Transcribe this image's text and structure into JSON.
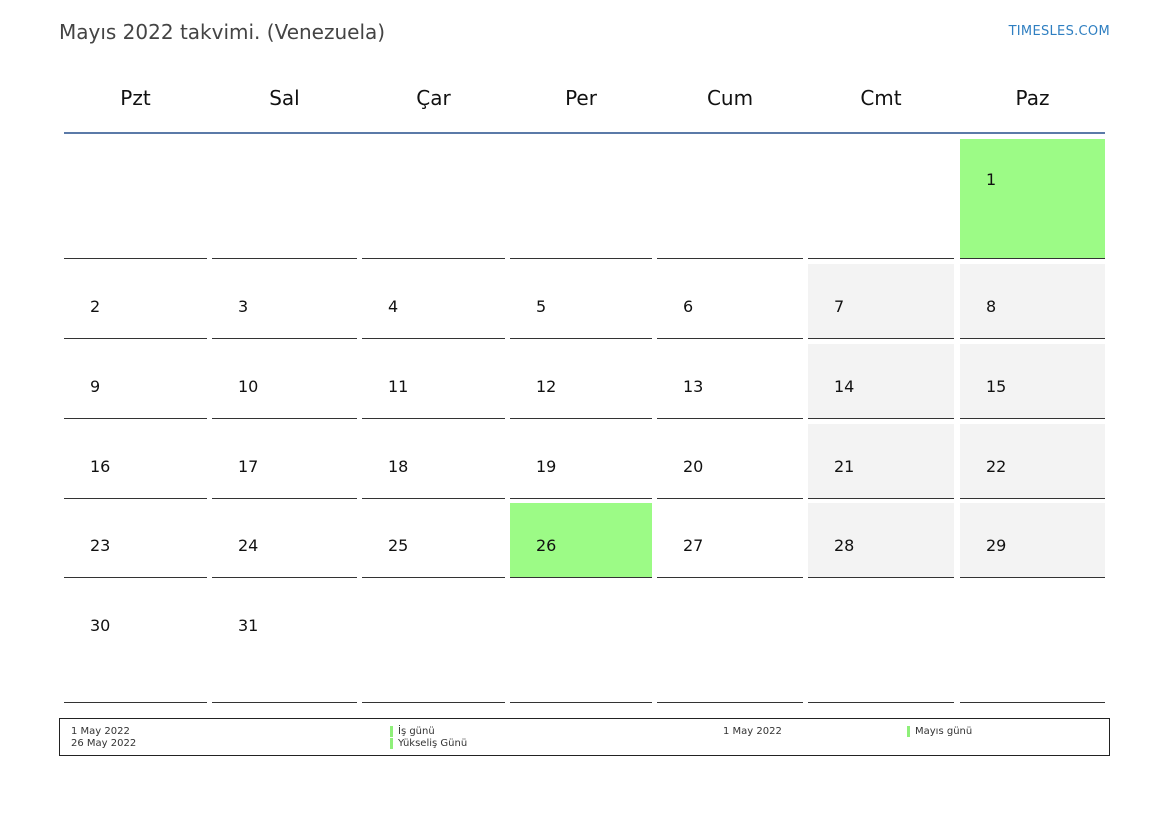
{
  "header": {
    "title": "Mayıs 2022 takvimi. (Venezuela)",
    "brand": "TIMESLES.COM"
  },
  "colors": {
    "holiday": "#9cfb86",
    "weekend": "#f3f3f3",
    "header_rule": "#5b7aa8",
    "brand": "#2f7fc1"
  },
  "calendar": {
    "weekdays": [
      "Pzt",
      "Sal",
      "Çar",
      "Per",
      "Cum",
      "Cmt",
      "Paz"
    ],
    "weeks": [
      [
        null,
        null,
        null,
        null,
        null,
        null,
        "1"
      ],
      [
        "2",
        "3",
        "4",
        "5",
        "6",
        "7",
        "8"
      ],
      [
        "9",
        "10",
        "11",
        "12",
        "13",
        "14",
        "15"
      ],
      [
        "16",
        "17",
        "18",
        "19",
        "20",
        "21",
        "22"
      ],
      [
        "23",
        "24",
        "25",
        "26",
        "27",
        "28",
        "29"
      ],
      [
        "30",
        "31",
        null,
        null,
        null,
        null,
        null
      ]
    ],
    "holidays": [
      "1",
      "26"
    ]
  },
  "legend": {
    "left_dates": [
      "1 May 2022",
      "26 May 2022"
    ],
    "left_names": [
      "İş günü",
      "Yükseliş Günü"
    ],
    "right_dates": [
      "1 May 2022"
    ],
    "right_names": [
      "Mayıs günü"
    ]
  }
}
